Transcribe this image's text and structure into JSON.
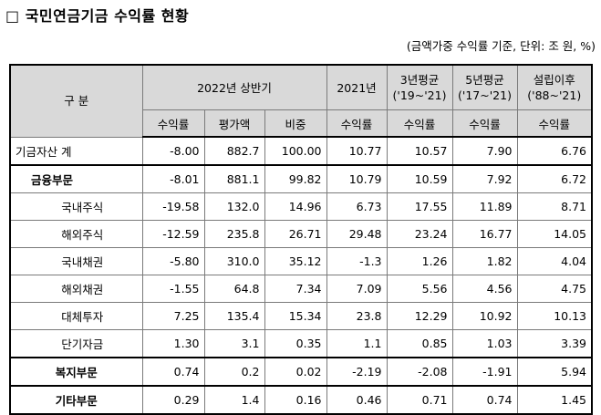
{
  "title": "□ 국민연금기금 수익률 현황",
  "unit_note": "(금액가중 수익률 기준, 단위: 조 원, %)",
  "header": {
    "category": "구 분",
    "group_2022h1": "2022년 상반기",
    "y2021": "2021년",
    "avg3_line1": "3년평균",
    "avg3_line2": "('19~'21)",
    "avg5_line1": "5년평균",
    "avg5_line2": "('17~'21)",
    "since_line1": "설립이후",
    "since_line2": "('88~'21)",
    "sub": [
      "수익률",
      "평가액",
      "비중",
      "수익률",
      "수익률",
      "수익률",
      "수익률"
    ]
  },
  "rows": [
    {
      "label": "기금자산 계",
      "values": [
        "-8.00",
        "882.7",
        "100.00",
        "10.77",
        "10.57",
        "7.90",
        "6.76"
      ]
    },
    {
      "label": "금융부문",
      "values": [
        "-8.01",
        "881.1",
        "99.82",
        "10.79",
        "10.59",
        "7.92",
        "6.72"
      ]
    },
    {
      "label": "국내주식",
      "values": [
        "-19.58",
        "132.0",
        "14.96",
        "6.73",
        "17.55",
        "11.89",
        "8.71"
      ]
    },
    {
      "label": "해외주식",
      "values": [
        "-12.59",
        "235.8",
        "26.71",
        "29.48",
        "23.24",
        "16.77",
        "14.05"
      ]
    },
    {
      "label": "국내채권",
      "values": [
        "-5.80",
        "310.0",
        "35.12",
        "-1.3",
        "1.26",
        "1.82",
        "4.04"
      ]
    },
    {
      "label": "해외채권",
      "values": [
        "-1.55",
        "64.8",
        "7.34",
        "7.09",
        "5.56",
        "4.56",
        "4.75"
      ]
    },
    {
      "label": "대체투자",
      "values": [
        "7.25",
        "135.4",
        "15.34",
        "23.8",
        "12.29",
        "10.92",
        "10.13"
      ]
    },
    {
      "label": "단기자금",
      "values": [
        "1.30",
        "3.1",
        "0.35",
        "1.1",
        "0.85",
        "1.03",
        "3.39"
      ]
    },
    {
      "label": "복지부문",
      "values": [
        "0.74",
        "0.2",
        "0.02",
        "-2.19",
        "-2.08",
        "-1.91",
        "5.94"
      ]
    },
    {
      "label": "기타부문",
      "values": [
        "0.29",
        "1.4",
        "0.16",
        "0.46",
        "0.71",
        "0.74",
        "1.45"
      ]
    }
  ]
}
